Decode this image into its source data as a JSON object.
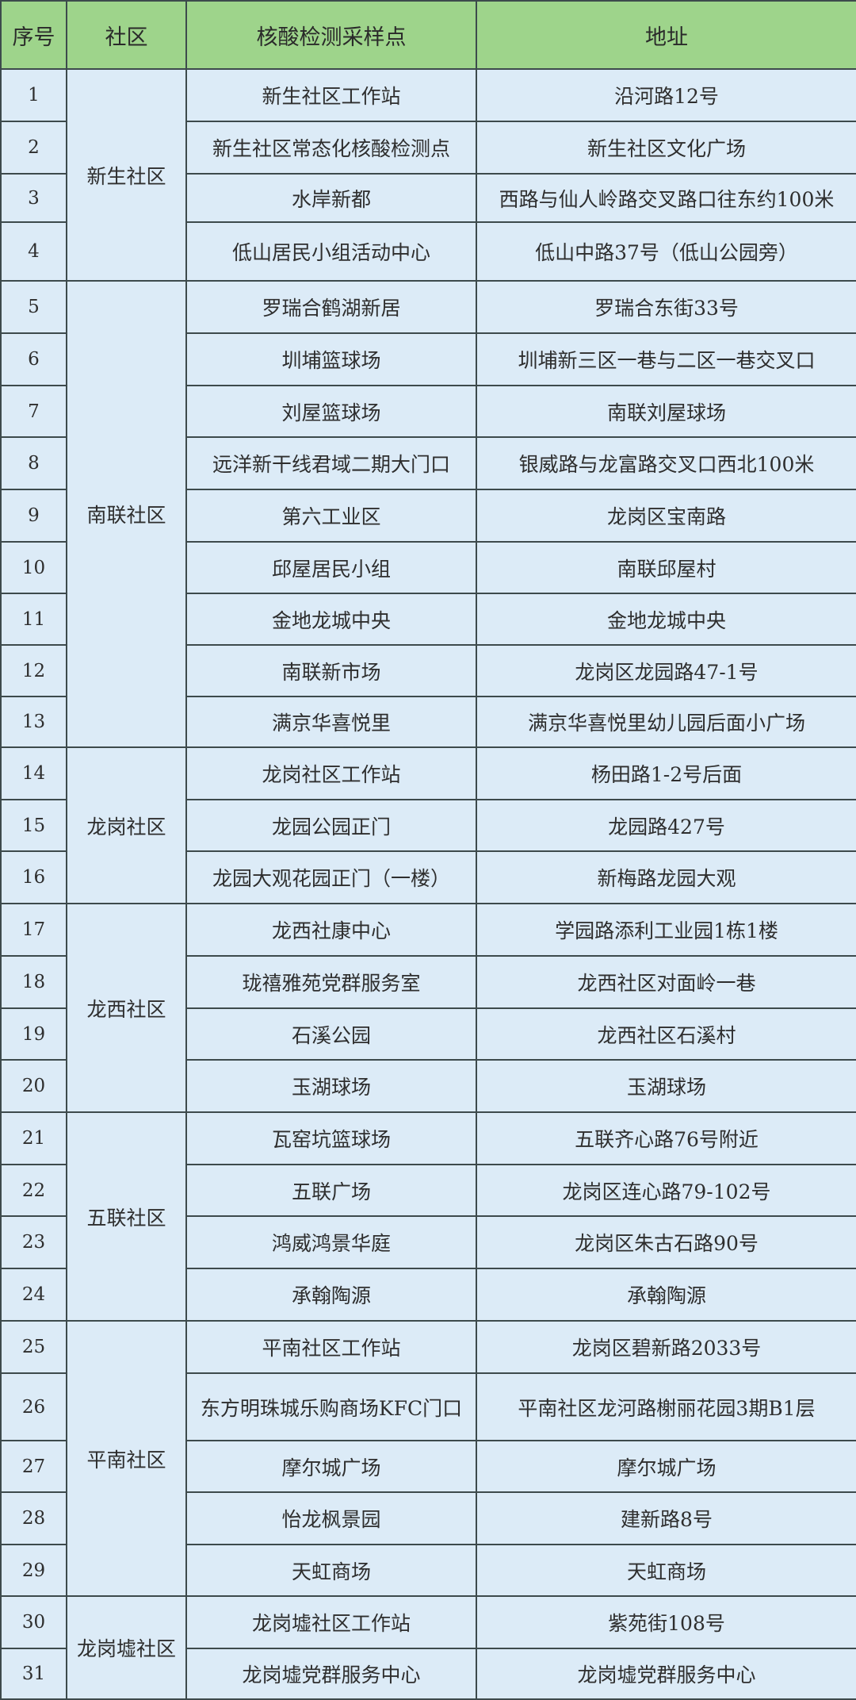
{
  "headers": [
    "序号",
    "社区",
    "核酸检测采样点",
    "地址"
  ],
  "colors": {
    "header_bg": "#9ed48b",
    "body_bg": "#dcebf7",
    "border": "#3d4a4c"
  },
  "groups": [
    {
      "community": "新生社区",
      "rows": [
        {
          "seq": "1",
          "site": "新生社区工作站",
          "address": "沿河路12号"
        },
        {
          "seq": "2",
          "site": "新生社区常态化核酸检测点",
          "address": "新生社区文化广场"
        },
        {
          "seq": "3",
          "site": "水岸新都",
          "address": "西路与仙人岭路交叉路口往东约100米"
        },
        {
          "seq": "4",
          "site": "低山居民小组活动中心",
          "address": "低山中路37号（低山公园旁）"
        }
      ]
    },
    {
      "community": "南联社区",
      "rows": [
        {
          "seq": "5",
          "site": "罗瑞合鹤湖新居",
          "address": "罗瑞合东街33号"
        },
        {
          "seq": "6",
          "site": "圳埔篮球场",
          "address": "圳埔新三区一巷与二区一巷交叉口"
        },
        {
          "seq": "7",
          "site": "刘屋篮球场",
          "address": "南联刘屋球场"
        },
        {
          "seq": "8",
          "site": "远洋新干线君域二期大门口",
          "address": "银威路与龙富路交叉口西北100米"
        },
        {
          "seq": "9",
          "site": "第六工业区",
          "address": "龙岗区宝南路"
        },
        {
          "seq": "10",
          "site": "邱屋居民小组",
          "address": "南联邱屋村"
        },
        {
          "seq": "11",
          "site": "金地龙城中央",
          "address": "金地龙城中央"
        },
        {
          "seq": "12",
          "site": "南联新市场",
          "address": "龙岗区龙园路47-1号"
        },
        {
          "seq": "13",
          "site": "满京华喜悦里",
          "address": "满京华喜悦里幼儿园后面小广场"
        }
      ]
    },
    {
      "community": "龙岗社区",
      "rows": [
        {
          "seq": "14",
          "site": "龙岗社区工作站",
          "address": "杨田路1-2号后面"
        },
        {
          "seq": "15",
          "site": "龙园公园正门",
          "address": "龙园路427号"
        },
        {
          "seq": "16",
          "site": "龙园大观花园正门（一楼）",
          "address": "新梅路龙园大观"
        }
      ]
    },
    {
      "community": "龙西社区",
      "rows": [
        {
          "seq": "17",
          "site": "龙西社康中心",
          "address": "学园路添利工业园1栋1楼"
        },
        {
          "seq": "18",
          "site": "珑禧雅苑党群服务室",
          "address": "龙西社区对面岭一巷"
        },
        {
          "seq": "19",
          "site": "石溪公园",
          "address": "龙西社区石溪村"
        },
        {
          "seq": "20",
          "site": "玉湖球场",
          "address": "玉湖球场"
        }
      ]
    },
    {
      "community": "五联社区",
      "rows": [
        {
          "seq": "21",
          "site": "瓦窑坑篮球场",
          "address": "五联齐心路76号附近"
        },
        {
          "seq": "22",
          "site": "五联广场",
          "address": "龙岗区连心路79-102号"
        },
        {
          "seq": "23",
          "site": "鸿威鸿景华庭",
          "address": "龙岗区朱古石路90号"
        },
        {
          "seq": "24",
          "site": "承翰陶源",
          "address": "承翰陶源"
        }
      ]
    },
    {
      "community": "平南社区",
      "rows": [
        {
          "seq": "25",
          "site": "平南社区工作站",
          "address": "龙岗区碧新路2033号"
        },
        {
          "seq": "26",
          "site": "东方明珠城乐购商场KFC门口",
          "address": "平南社区龙河路榭丽花园3期B1层"
        },
        {
          "seq": "27",
          "site": "摩尔城广场",
          "address": "摩尔城广场"
        },
        {
          "seq": "28",
          "site": "怡龙枫景园",
          "address": "建新路8号"
        },
        {
          "seq": "29",
          "site": "天虹商场",
          "address": "天虹商场"
        }
      ]
    },
    {
      "community": "龙岗墟社区",
      "rows": [
        {
          "seq": "30",
          "site": "龙岗墟社区工作站",
          "address": "紫苑街108号"
        },
        {
          "seq": "31",
          "site": "龙岗墟党群服务中心",
          "address": "龙岗墟党群服务中心"
        }
      ]
    }
  ]
}
